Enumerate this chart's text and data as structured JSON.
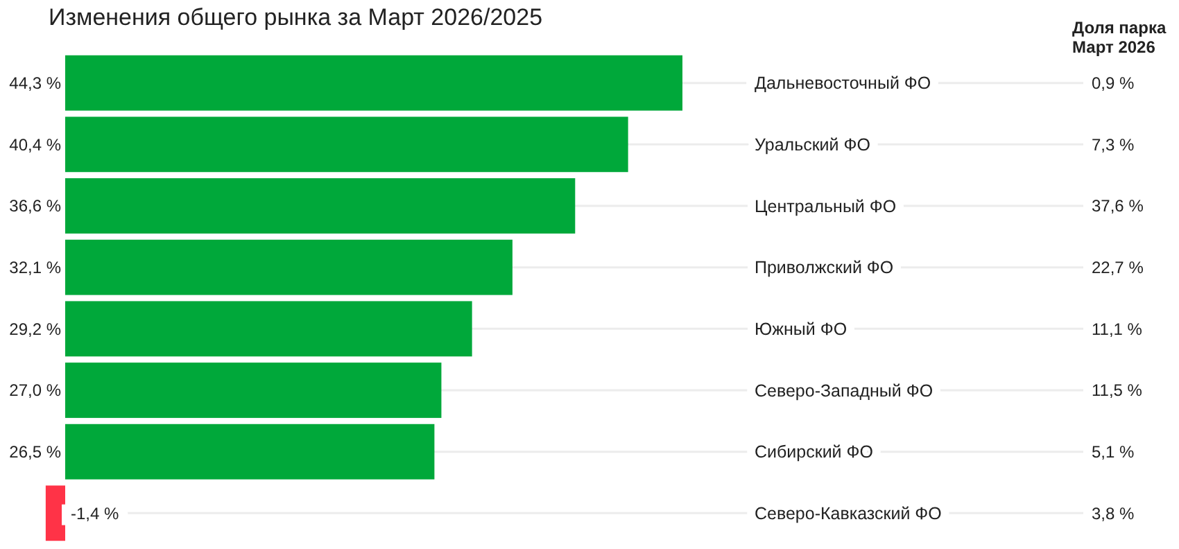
{
  "chart_data": {
    "type": "bar",
    "orientation": "horizontal",
    "title": "Изменения общего рынка за Март 2026/2025",
    "categories": [
      "Дальневосточный ФО",
      "Уральский ФО",
      "Центральный ФО",
      "Приволжский ФО",
      "Южный ФО",
      "Северо-Западный ФО",
      "Сибирский ФО",
      "Северо-Кавказский ФО"
    ],
    "values": [
      44.3,
      40.4,
      36.6,
      32.1,
      29.2,
      27.0,
      26.5,
      -1.4
    ],
    "colors": [
      "#00a83a",
      "#00a83a",
      "#00a83a",
      "#00a83a",
      "#00a83a",
      "#00a83a",
      "#00a83a",
      "#ff3347"
    ],
    "value_labels": [
      "44,3 %",
      "40,4 %",
      "36,6 %",
      "32,1 %",
      "29,2 %",
      "27,0 %",
      "26,5 %",
      "-1,4 %"
    ],
    "grid": "y",
    "legend_title": "Доля парка Март 2026",
    "annotations": [
      "0,9 %",
      "7,3 %",
      "37,6 %",
      "22,7 %",
      "11,1 %",
      "11,5 %",
      "5,1 %",
      "3,8 %"
    ]
  }
}
